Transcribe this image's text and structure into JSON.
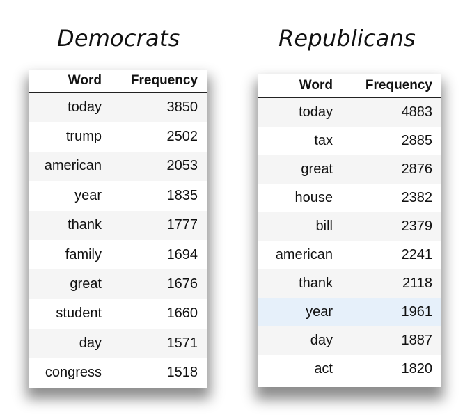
{
  "tables": [
    {
      "title": "Democrats",
      "headers": [
        "Word",
        "Frequency"
      ],
      "rows": [
        [
          "today",
          "3850"
        ],
        [
          "trump",
          "2502"
        ],
        [
          "american",
          "2053"
        ],
        [
          "year",
          "1835"
        ],
        [
          "thank",
          "1777"
        ],
        [
          "family",
          "1694"
        ],
        [
          "great",
          "1676"
        ],
        [
          "student",
          "1660"
        ],
        [
          "day",
          "1571"
        ],
        [
          "congress",
          "1518"
        ]
      ]
    },
    {
      "title": "Republicans",
      "headers": [
        "Word",
        "Frequency"
      ],
      "highlighted_row": 7,
      "highlight_color": "#e6f0fa",
      "rows": [
        [
          "today",
          "4883"
        ],
        [
          "tax",
          "2885"
        ],
        [
          "great",
          "2876"
        ],
        [
          "house",
          "2382"
        ],
        [
          "bill",
          "2379"
        ],
        [
          "american",
          "2241"
        ],
        [
          "thank",
          "2118"
        ],
        [
          "year",
          "1961"
        ],
        [
          "day",
          "1887"
        ],
        [
          "act",
          "1820"
        ]
      ]
    }
  ]
}
